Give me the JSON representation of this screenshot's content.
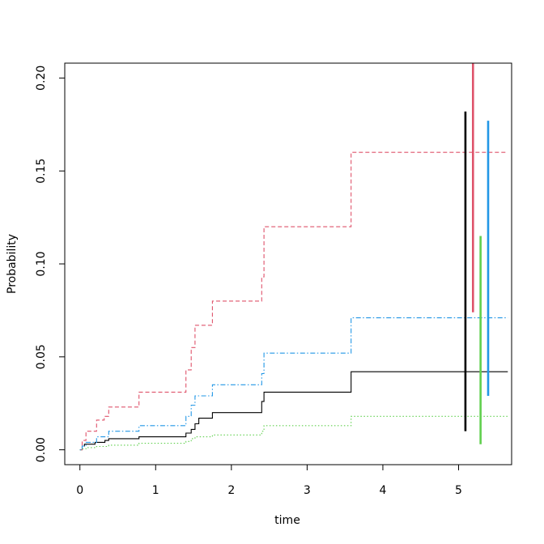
{
  "chart_data": {
    "type": "line",
    "title": "",
    "xlabel": "time",
    "ylabel": "Probability",
    "xlim": [
      -0.2,
      5.7
    ],
    "ylim": [
      -0.008,
      0.208
    ],
    "x_ticks": [
      0,
      1,
      2,
      3,
      4,
      5
    ],
    "x_tick_labels": [
      "0",
      "1",
      "2",
      "3",
      "4",
      "5"
    ],
    "y_ticks": [
      0.0,
      0.05,
      0.1,
      0.15,
      0.2
    ],
    "y_tick_labels": [
      "0.00",
      "0.05",
      "0.10",
      "0.15",
      "0.20"
    ],
    "grid": false,
    "legend": "none",
    "series": [
      {
        "color": "#000000",
        "linestyle": "solid",
        "x": [
          0,
          0.03,
          0.06,
          0.2,
          0.33,
          0.38,
          0.78,
          1.4,
          1.47,
          1.52,
          1.57,
          1.75,
          2.4,
          2.43,
          3.58,
          5.65
        ],
        "y": [
          0.0,
          0.002,
          0.003,
          0.004,
          0.005,
          0.006,
          0.007,
          0.009,
          0.011,
          0.014,
          0.017,
          0.02,
          0.026,
          0.031,
          0.042,
          0.042
        ]
      },
      {
        "color": "#DF536B",
        "linestyle": "dashed",
        "x": [
          0,
          0.03,
          0.08,
          0.22,
          0.32,
          0.38,
          0.78,
          1.4,
          1.47,
          1.52,
          1.75,
          2.4,
          2.43,
          3.58,
          5.65
        ],
        "y": [
          0.0,
          0.005,
          0.01,
          0.016,
          0.018,
          0.023,
          0.031,
          0.043,
          0.055,
          0.067,
          0.08,
          0.093,
          0.12,
          0.16,
          0.16
        ]
      },
      {
        "color": "#61D04F",
        "linestyle": "dotted",
        "x": [
          0,
          0.03,
          0.08,
          0.22,
          0.38,
          0.78,
          1.4,
          1.47,
          1.52,
          1.75,
          2.4,
          2.43,
          3.58,
          5.65
        ],
        "y": [
          0.0,
          0.0005,
          0.0012,
          0.0018,
          0.0025,
          0.0035,
          0.0045,
          0.006,
          0.007,
          0.008,
          0.01,
          0.013,
          0.018,
          0.018
        ]
      },
      {
        "color": "#2297E6",
        "linestyle": "dotdash",
        "x": [
          0,
          0.03,
          0.08,
          0.22,
          0.38,
          0.78,
          1.4,
          1.47,
          1.52,
          1.75,
          2.4,
          2.43,
          3.58,
          5.65
        ],
        "y": [
          0.0,
          0.002,
          0.004,
          0.007,
          0.01,
          0.013,
          0.018,
          0.024,
          0.029,
          0.035,
          0.041,
          0.052,
          0.071,
          0.071
        ]
      }
    ],
    "intervals": [
      {
        "color": "#000000",
        "x": 5.09,
        "low": 0.01,
        "high": 0.182
      },
      {
        "color": "#DF536B",
        "x": 5.19,
        "low": 0.074,
        "high": 0.208
      },
      {
        "color": "#61D04F",
        "x": 5.29,
        "low": 0.003,
        "high": 0.115
      },
      {
        "color": "#2297E6",
        "x": 5.39,
        "low": 0.029,
        "high": 0.177
      }
    ]
  }
}
